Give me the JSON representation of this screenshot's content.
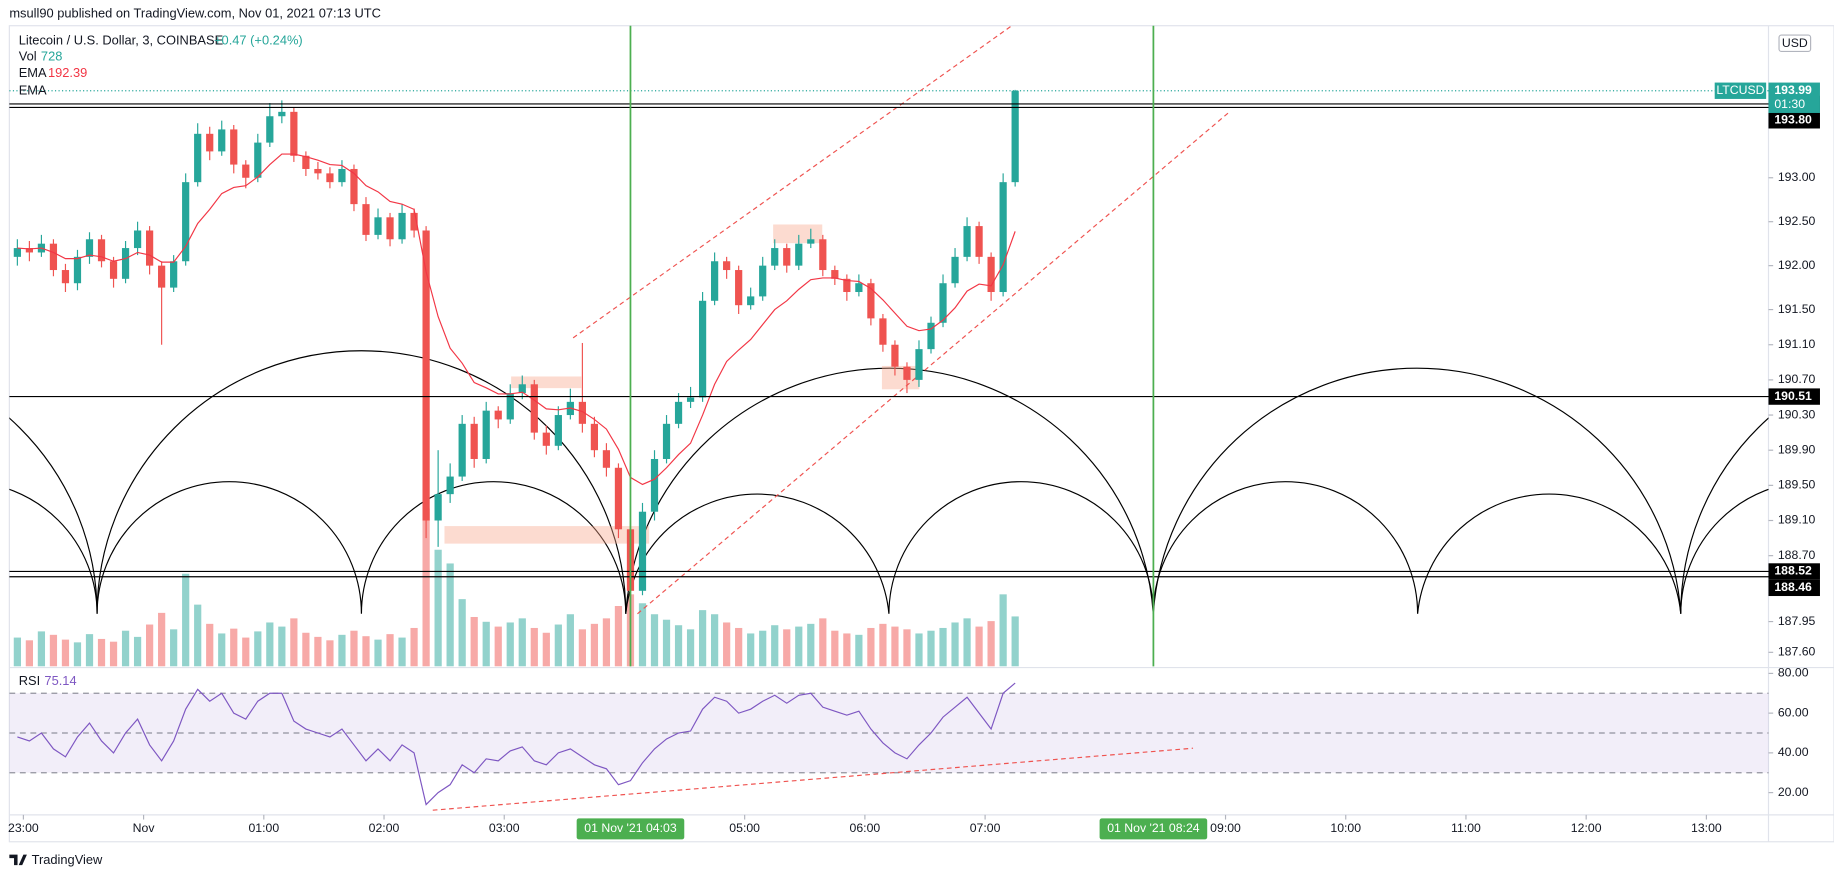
{
  "header": "msull90 published on TradingView.com, Nov 01, 2021 07:13 UTC",
  "footer": "TradingView",
  "chart_data": {
    "type": "candlestick",
    "title": "Litecoin / U.S. Dollar, 3, COINBASE",
    "change": "+0.47 (+0.24%)",
    "currency": "USD",
    "symbol": "LTCUSD",
    "countdown": "01:30",
    "up_color": "#26a69a",
    "down_color": "#ef5350",
    "x": [
      "22:54",
      "23:00",
      "23:06",
      "23:12",
      "23:18",
      "23:24",
      "23:30",
      "23:36",
      "23:42",
      "23:48",
      "23:54",
      "00:00",
      "00:06",
      "00:12",
      "00:18",
      "00:24",
      "00:30",
      "00:36",
      "00:42",
      "00:48",
      "00:54",
      "01:00",
      "01:06",
      "01:12",
      "01:18",
      "01:24",
      "01:30",
      "01:36",
      "01:42",
      "01:48",
      "01:54",
      "02:00",
      "02:06",
      "02:12",
      "02:18",
      "02:24",
      "02:30",
      "02:36",
      "02:42",
      "02:48",
      "02:54",
      "03:00",
      "03:06",
      "03:12",
      "03:18",
      "03:24",
      "03:30",
      "03:36",
      "03:42",
      "03:48",
      "03:54",
      "04:00",
      "04:06",
      "04:12",
      "04:18",
      "04:24",
      "04:30",
      "04:36",
      "04:42",
      "04:48",
      "04:54",
      "05:00",
      "05:06",
      "05:12",
      "05:18",
      "05:24",
      "05:30",
      "05:36",
      "05:42",
      "05:48",
      "05:54",
      "06:00",
      "06:06",
      "06:12",
      "06:18",
      "06:24",
      "06:30",
      "06:36",
      "06:42",
      "06:48",
      "06:54",
      "07:00",
      "07:06",
      "07:12"
    ],
    "open": [
      192.1,
      192.2,
      192.15,
      192.25,
      191.95,
      191.8,
      192.1,
      192.3,
      192.05,
      191.85,
      192.2,
      192.4,
      192.0,
      191.75,
      192.05,
      192.95,
      193.5,
      193.3,
      193.55,
      193.15,
      193.0,
      193.4,
      193.7,
      193.75,
      193.25,
      193.1,
      193.05,
      192.95,
      193.1,
      192.7,
      192.35,
      192.55,
      192.3,
      192.6,
      192.4,
      189.1,
      189.4,
      189.6,
      190.2,
      189.8,
      190.35,
      190.25,
      190.55,
      190.65,
      190.1,
      189.95,
      190.3,
      190.45,
      190.2,
      189.9,
      189.7,
      189.0,
      188.3,
      189.2,
      189.8,
      190.2,
      190.45,
      190.5,
      191.6,
      192.05,
      191.95,
      191.55,
      191.65,
      192.0,
      192.2,
      192.0,
      192.25,
      192.3,
      191.95,
      191.85,
      191.7,
      191.8,
      191.4,
      191.1,
      190.85,
      190.7,
      191.05,
      191.35,
      191.8,
      192.1,
      192.45,
      192.1,
      191.7,
      192.95
    ],
    "high": [
      192.3,
      192.28,
      192.35,
      192.3,
      192.02,
      192.18,
      192.38,
      192.35,
      192.1,
      192.28,
      192.5,
      192.45,
      192.05,
      192.12,
      193.05,
      193.62,
      193.58,
      193.65,
      193.6,
      193.2,
      193.5,
      193.85,
      193.88,
      193.8,
      193.3,
      193.18,
      193.12,
      193.2,
      193.15,
      192.78,
      192.65,
      192.6,
      192.7,
      192.65,
      192.45,
      189.9,
      189.75,
      190.3,
      190.28,
      190.45,
      190.4,
      190.65,
      190.75,
      190.7,
      190.18,
      190.4,
      190.6,
      191.12,
      190.28,
      189.98,
      189.75,
      189.1,
      189.3,
      189.9,
      190.3,
      190.55,
      190.62,
      191.7,
      192.15,
      192.1,
      192.0,
      191.75,
      192.1,
      192.3,
      192.25,
      192.35,
      192.42,
      192.35,
      192.0,
      191.9,
      191.9,
      191.85,
      191.45,
      191.15,
      190.9,
      191.15,
      191.42,
      191.9,
      192.2,
      192.55,
      192.5,
      192.15,
      193.05,
      194.0
    ],
    "low": [
      192.0,
      192.05,
      192.1,
      191.88,
      191.7,
      191.72,
      192.02,
      191.98,
      191.75,
      191.8,
      192.12,
      191.9,
      191.1,
      191.7,
      192.0,
      192.9,
      193.2,
      193.25,
      193.05,
      192.88,
      192.95,
      193.35,
      193.62,
      193.18,
      193.02,
      192.98,
      192.88,
      192.9,
      192.62,
      192.28,
      192.3,
      192.22,
      192.25,
      192.32,
      188.9,
      188.8,
      189.3,
      189.55,
      189.7,
      189.75,
      190.15,
      190.2,
      190.48,
      190.02,
      189.85,
      189.9,
      190.25,
      190.1,
      189.82,
      189.6,
      188.9,
      187.92,
      188.25,
      189.1,
      189.75,
      190.15,
      190.38,
      190.45,
      191.55,
      191.85,
      191.45,
      191.5,
      191.6,
      191.95,
      191.92,
      191.95,
      192.2,
      191.88,
      191.78,
      191.6,
      191.65,
      191.32,
      191.02,
      190.75,
      190.55,
      190.62,
      191.0,
      191.3,
      191.75,
      192.05,
      192.02,
      191.6,
      191.65,
      192.9
    ],
    "close": [
      192.2,
      192.15,
      192.25,
      191.95,
      191.8,
      192.1,
      192.3,
      192.05,
      191.85,
      192.2,
      192.4,
      192.0,
      191.75,
      192.05,
      192.95,
      193.5,
      193.3,
      193.55,
      193.15,
      193.0,
      193.4,
      193.7,
      193.75,
      193.25,
      193.1,
      193.05,
      192.95,
      193.1,
      192.7,
      192.35,
      192.55,
      192.3,
      192.6,
      192.4,
      189.1,
      189.4,
      189.6,
      190.2,
      189.8,
      190.35,
      190.25,
      190.55,
      190.65,
      190.1,
      189.95,
      190.3,
      190.45,
      190.2,
      189.9,
      189.7,
      189.0,
      188.3,
      189.2,
      189.8,
      190.2,
      190.45,
      190.5,
      191.6,
      192.05,
      191.95,
      191.55,
      191.65,
      192.0,
      192.2,
      192.0,
      192.25,
      192.3,
      191.95,
      191.85,
      191.7,
      191.8,
      191.4,
      191.1,
      190.85,
      190.7,
      191.05,
      191.35,
      191.8,
      192.1,
      192.45,
      192.1,
      191.7,
      192.95,
      193.99
    ],
    "volume": {
      "name": "Vol",
      "values": [
        420,
        380,
        510,
        460,
        390,
        350,
        470,
        400,
        360,
        520,
        430,
        610,
        780,
        540,
        1350,
        900,
        620,
        480,
        550,
        420,
        510,
        640,
        580,
        700,
        490,
        430,
        380,
        460,
        520,
        440,
        390,
        470,
        420,
        560,
        2300,
        1700,
        1500,
        980,
        720,
        650,
        580,
        640,
        700,
        560,
        490,
        610,
        760,
        540,
        620,
        700,
        880,
        1050,
        920,
        760,
        680,
        600,
        540,
        820,
        760,
        640,
        560,
        480,
        520,
        600,
        540,
        580,
        620,
        700,
        520,
        480,
        460,
        560,
        620,
        580,
        540,
        480,
        520,
        560,
        640,
        700,
        580,
        660,
        1050,
        728
      ]
    },
    "ema": {
      "name": "EMA",
      "color": "#f23645",
      "values": [
        192.2,
        192.19,
        192.2,
        192.15,
        192.08,
        192.08,
        192.12,
        192.1,
        192.05,
        192.08,
        192.15,
        192.12,
        192.04,
        192.04,
        192.22,
        192.48,
        192.64,
        192.82,
        192.89,
        192.91,
        193.01,
        193.15,
        193.27,
        193.27,
        193.24,
        193.2,
        193.15,
        193.14,
        193.05,
        192.91,
        192.84,
        192.73,
        192.7,
        192.64,
        191.93,
        191.42,
        191.06,
        190.89,
        190.67,
        190.61,
        190.54,
        190.54,
        190.56,
        190.47,
        190.37,
        190.36,
        190.38,
        190.34,
        190.25,
        190.14,
        189.91,
        189.59,
        189.51,
        189.57,
        189.7,
        189.85,
        189.98,
        190.3,
        190.65,
        190.91,
        191.04,
        191.16,
        191.33,
        191.5,
        191.6,
        191.73,
        191.84,
        191.86,
        191.86,
        191.83,
        191.82,
        191.74,
        191.61,
        191.46,
        191.31,
        191.26,
        191.28,
        191.38,
        191.52,
        191.71,
        191.79,
        191.77,
        192.01,
        192.39
      ]
    },
    "ema2_name": "EMA",
    "rsi": {
      "name": "RSI",
      "color": "#7e57c2",
      "values": [
        48,
        46,
        50,
        42,
        38,
        48,
        55,
        46,
        40,
        50,
        57,
        44,
        36,
        46,
        62,
        72,
        66,
        70,
        60,
        57,
        66,
        70,
        70,
        56,
        52,
        50,
        48,
        52,
        44,
        36,
        42,
        36,
        44,
        40,
        14,
        20,
        24,
        34,
        30,
        37,
        36,
        41,
        43,
        36,
        34,
        40,
        42,
        38,
        34,
        32,
        24,
        26,
        35,
        42,
        47,
        50,
        51,
        62,
        68,
        66,
        60,
        62,
        66,
        69,
        65,
        69,
        70,
        63,
        61,
        59,
        61,
        52,
        45,
        40,
        37,
        44,
        50,
        58,
        63,
        68,
        60,
        52,
        70,
        75.14
      ],
      "ylim": [
        8.8,
        82.35
      ],
      "yticks": [
        {
          "value": 80,
          "label": "80.00"
        },
        {
          "value": 60,
          "label": "60.00"
        },
        {
          "value": 40,
          "label": "40.00"
        },
        {
          "value": 20,
          "label": "20.00"
        }
      ],
      "levels": [
        70,
        50,
        30
      ]
    },
    "xlim": [
      "22:53",
      "13:31"
    ],
    "xticks": [
      "23:00",
      {
        "value": "00:00",
        "label": "Nov"
      },
      "01:00",
      "02:00",
      "03:00",
      "05:00",
      "06:00",
      "07:00",
      "09:00",
      "10:00",
      "11:00",
      "12:00",
      "13:00"
    ],
    "ylim": [
      187.44,
      194.73
    ],
    "yticks": [
      {
        "value": 193,
        "label": "193.00"
      },
      {
        "value": 192.5,
        "label": "192.50"
      },
      {
        "value": 192,
        "label": "192.00"
      },
      {
        "value": 191.5,
        "label": "191.50"
      },
      {
        "value": 191.1,
        "label": "191.10"
      },
      {
        "value": 190.7,
        "label": "190.70"
      },
      {
        "value": 190.3,
        "label": "190.30"
      },
      {
        "value": 189.9,
        "label": "189.90"
      },
      {
        "value": 189.5,
        "label": "189.50"
      },
      {
        "value": 189.1,
        "label": "189.10"
      },
      {
        "value": 188.7,
        "label": "188.70"
      },
      {
        "value": 187.95,
        "label": "187.95"
      },
      {
        "value": 187.6,
        "label": "187.60"
      }
    ],
    "levels": [
      193.84,
      {
        "value": 193.8,
        "label": "193.80"
      },
      190.51,
      188.52,
      188.46
    ],
    "markers": [
      {
        "value": "04:03",
        "label": "01 Nov '21 04:03"
      },
      {
        "value": "08:24",
        "label": "01 Nov '21 08:24"
      }
    ]
  }
}
